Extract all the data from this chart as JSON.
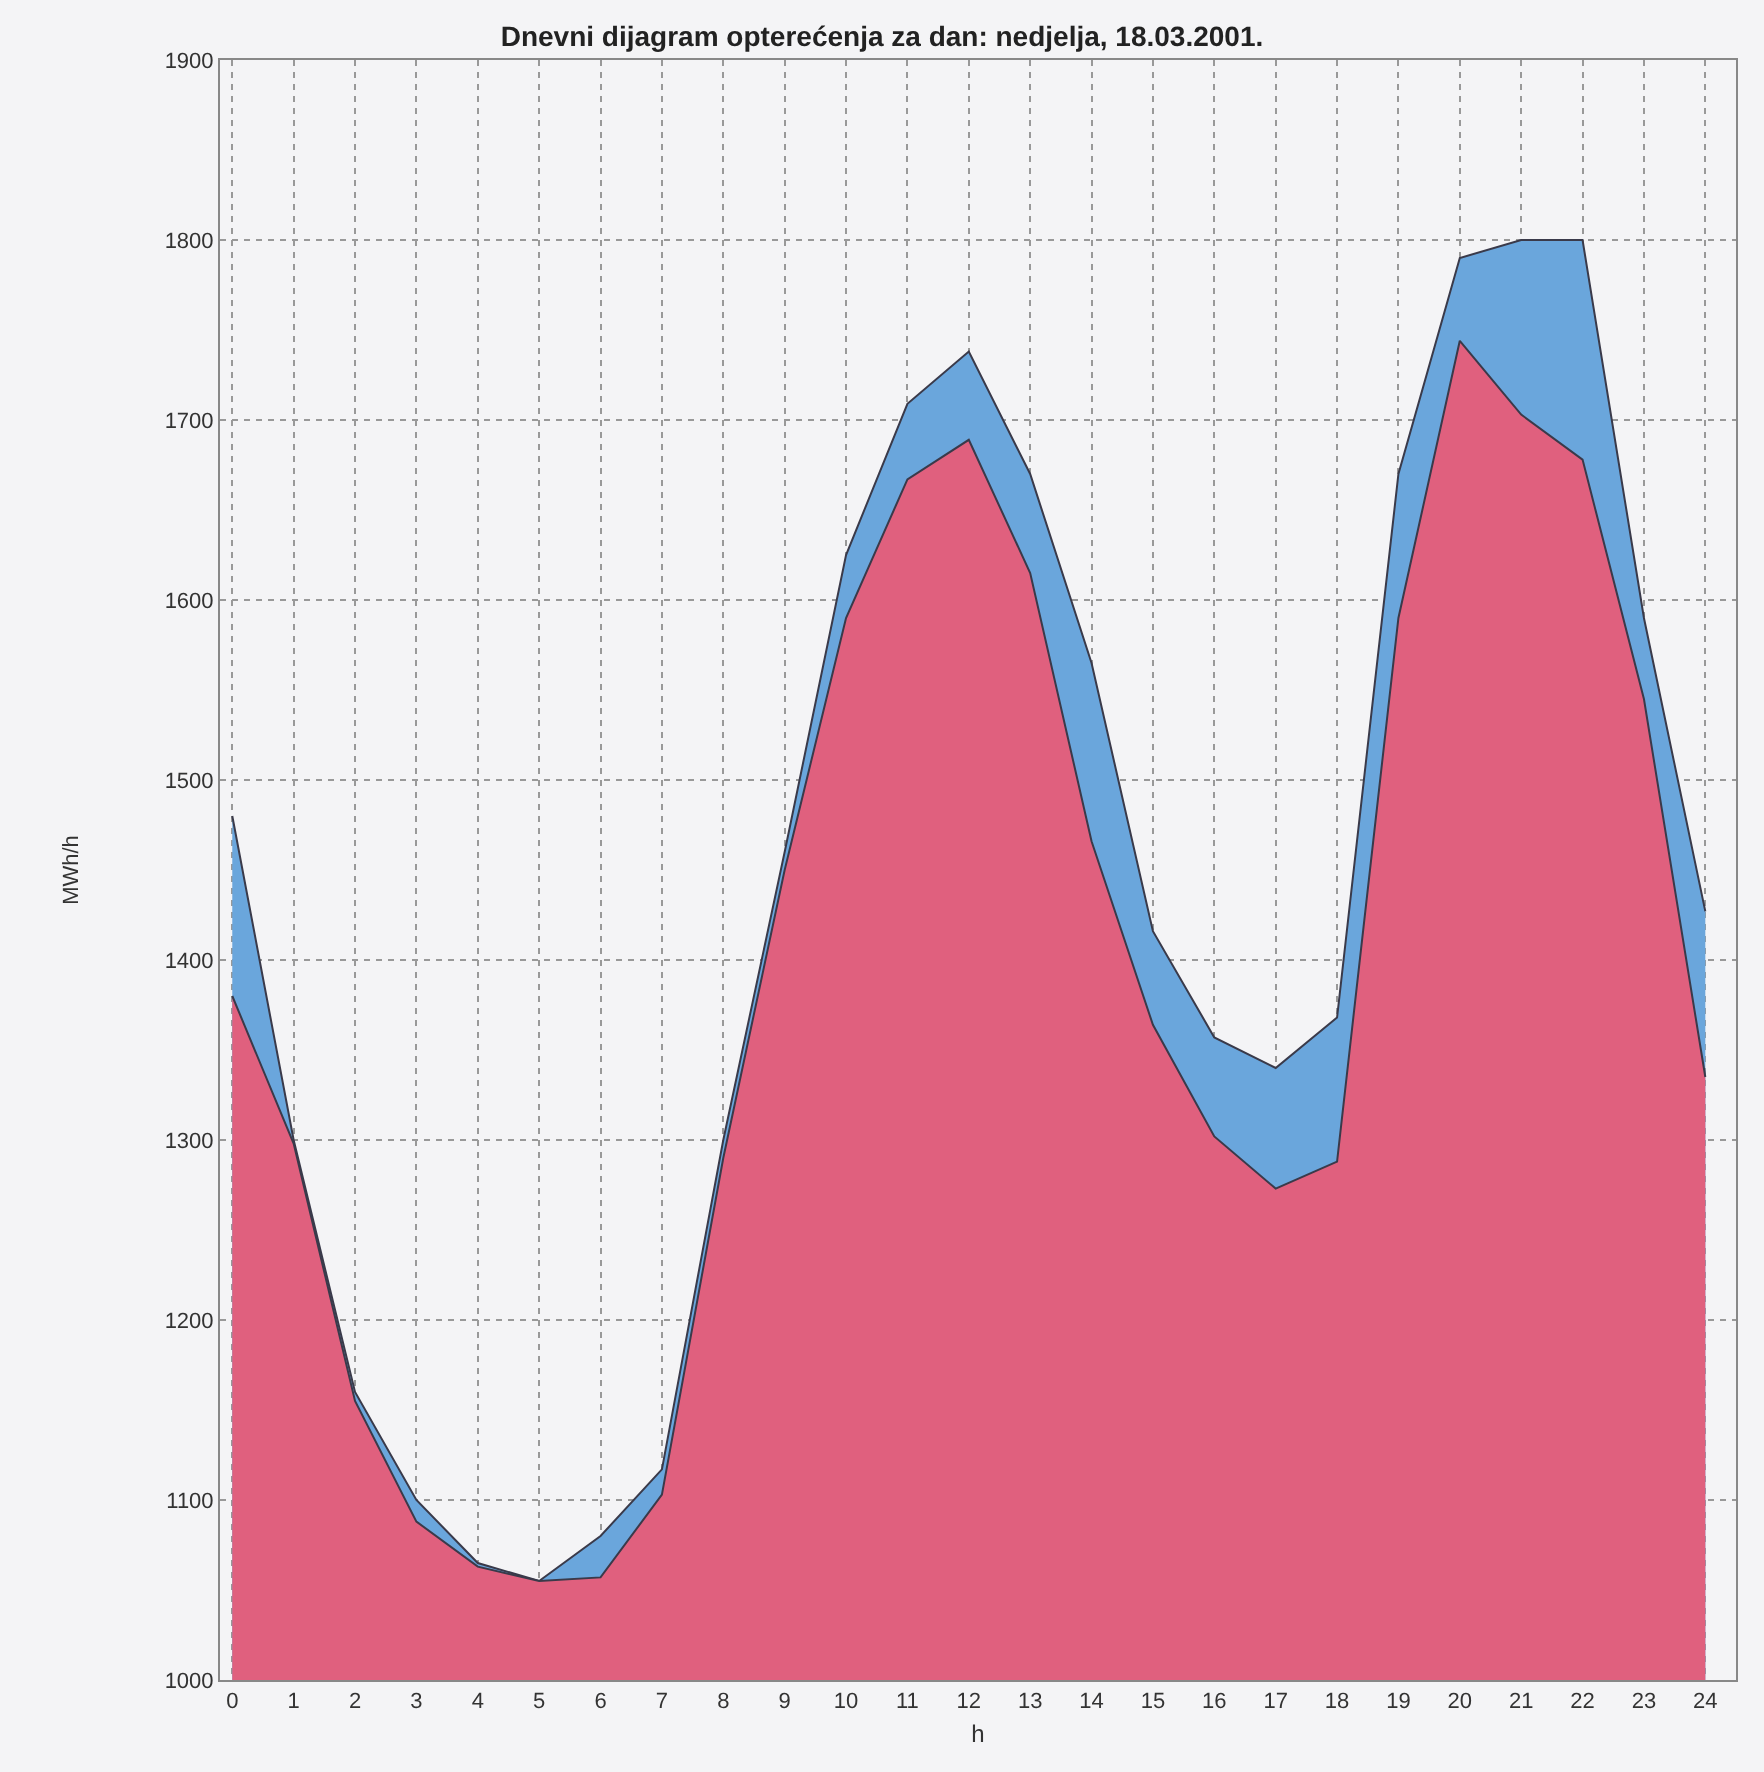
{
  "chart_data": {
    "type": "area",
    "title": "Dnevni dijagram opterećenja za dan: nedjelja, 18.03.2001.",
    "xlabel": "h",
    "ylabel": "MWh/h",
    "x": [
      0,
      1,
      2,
      3,
      4,
      5,
      6,
      7,
      8,
      9,
      10,
      11,
      12,
      13,
      14,
      15,
      16,
      17,
      18,
      19,
      20,
      21,
      22,
      23,
      24
    ],
    "series": [
      {
        "color": "#6aa6dc",
        "values": [
          1480,
          1300,
          1160,
          1100,
          1065,
          1055,
          1080,
          1117,
          1300,
          1460,
          1625,
          1709,
          1738,
          1670,
          1565,
          1416,
          1357,
          1340,
          1368,
          1670,
          1790,
          1800,
          1800,
          1590,
          1427
        ]
      },
      {
        "color": "#e0607e",
        "values": [
          1380,
          1298,
          1155,
          1088,
          1063,
          1055,
          1057,
          1103,
          1290,
          1450,
          1590,
          1667,
          1689,
          1615,
          1466,
          1364,
          1302,
          1273,
          1288,
          1590,
          1744,
          1703,
          1678,
          1545,
          1335
        ]
      }
    ],
    "xlim": [
      -0.2,
      24.5
    ],
    "ylim": [
      1000,
      1900
    ],
    "xticks": [
      0,
      1,
      2,
      3,
      4,
      5,
      6,
      7,
      8,
      9,
      10,
      11,
      12,
      13,
      14,
      15,
      16,
      17,
      18,
      19,
      20,
      21,
      22,
      23,
      24
    ],
    "yticks": [
      1000,
      1100,
      1200,
      1300,
      1400,
      1500,
      1600,
      1700,
      1800,
      1900
    ],
    "grid": true,
    "line_style": "solid",
    "marker": "none"
  }
}
